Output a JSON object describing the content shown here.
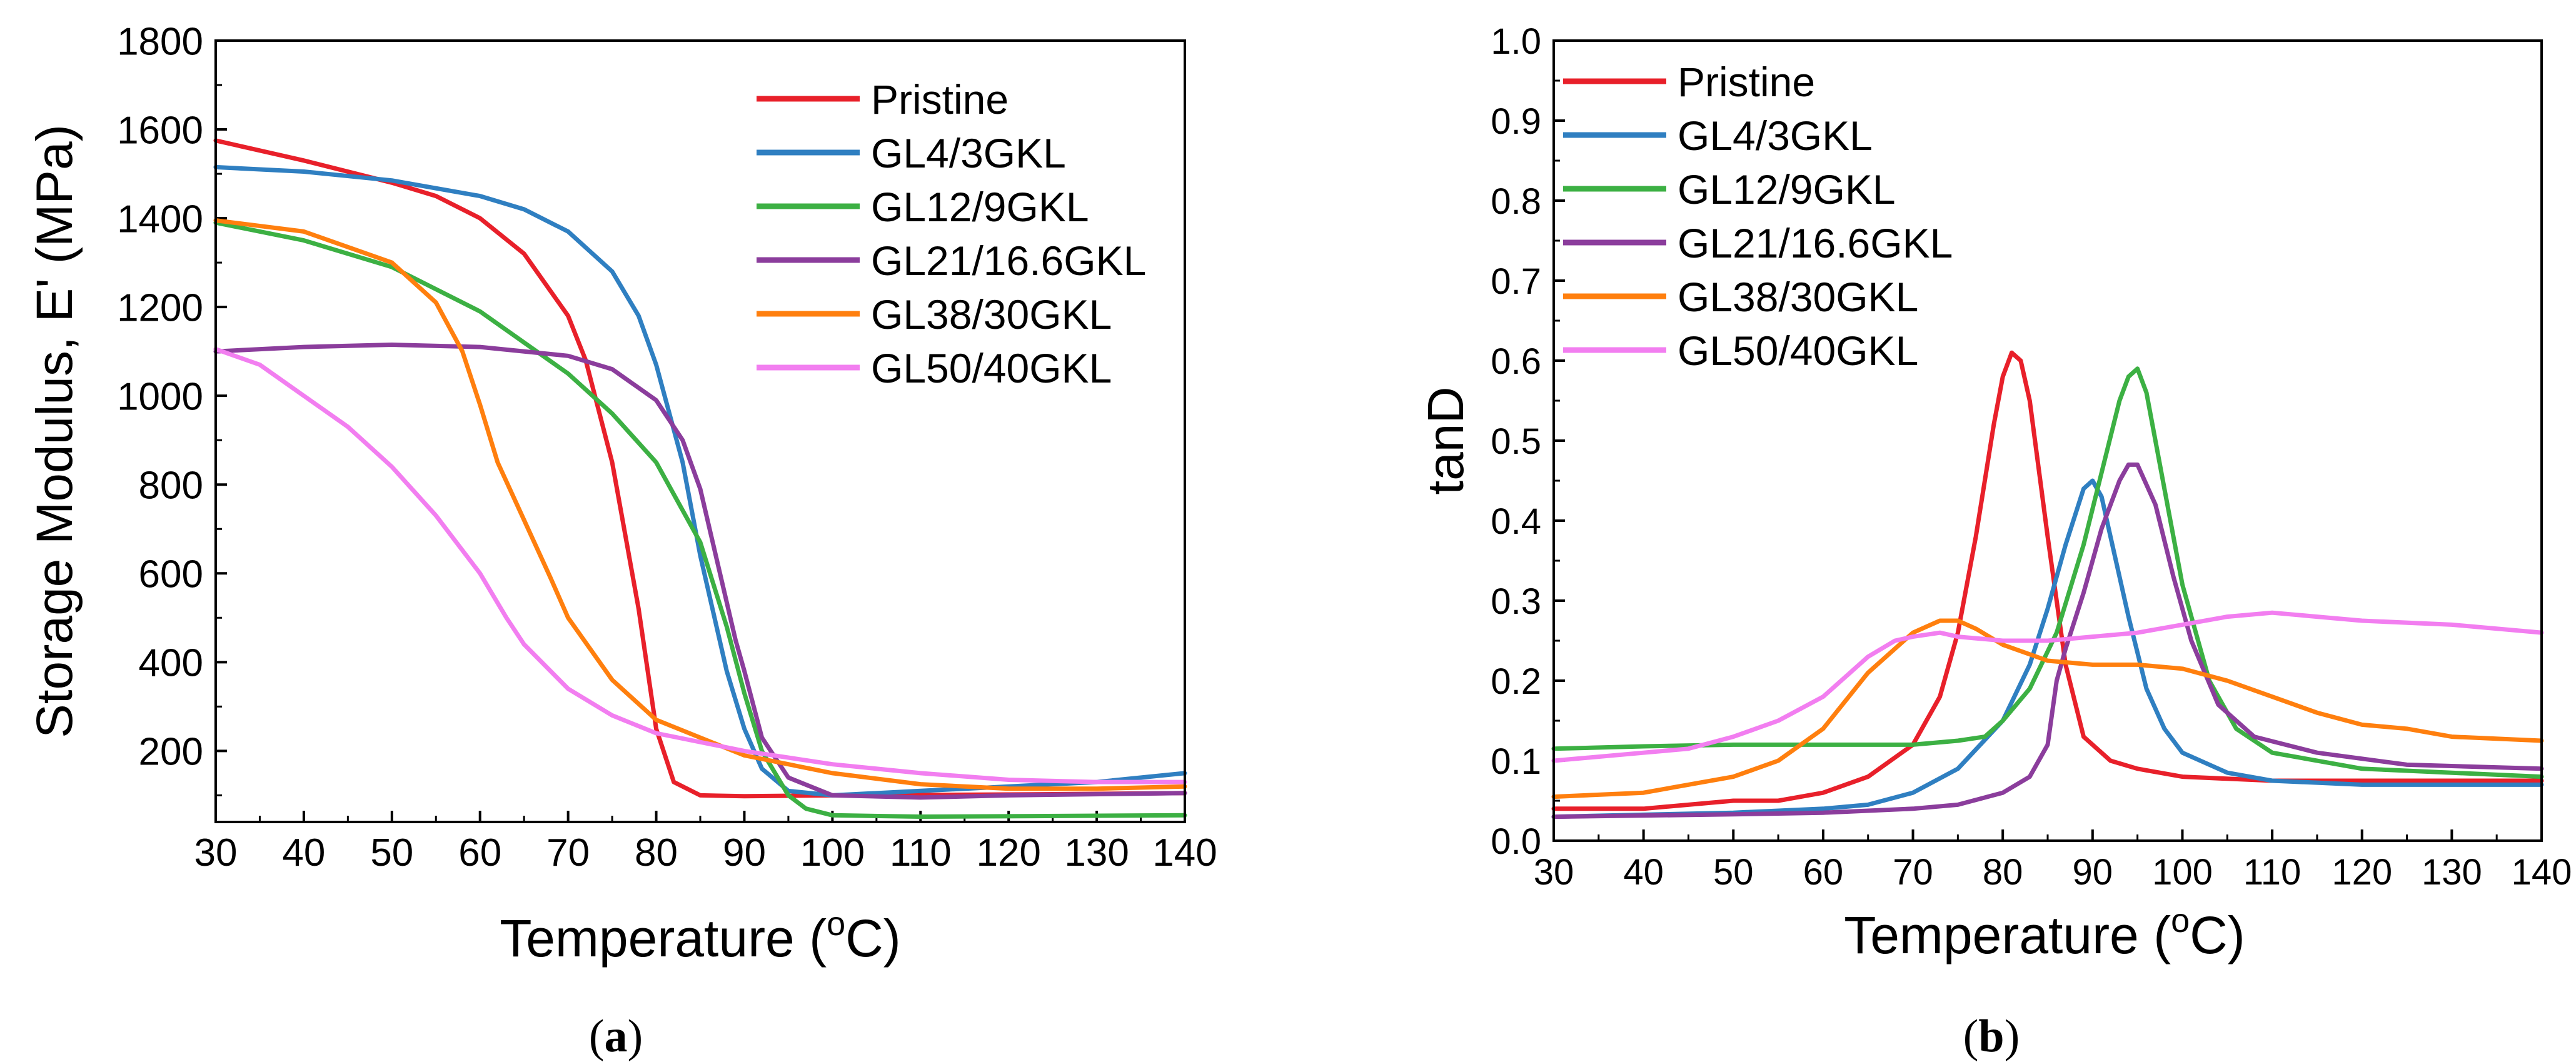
{
  "chart_data": [
    {
      "panel_label": "(a)",
      "panel_letter": "a",
      "type": "line",
      "title": "",
      "xlabel": "Temperature (",
      "xlabel_sup": "o",
      "xlabel_suffix": "C)",
      "ylabel": "Storage Modulus, E' (MPa)",
      "xlim": [
        30,
        140
      ],
      "ylim": [
        40,
        1800
      ],
      "xticks": [
        30,
        40,
        50,
        60,
        70,
        80,
        90,
        100,
        110,
        120,
        130,
        140
      ],
      "xtick_labels": [
        "30",
        "40",
        "50",
        "60",
        "70",
        "80",
        "90",
        "100",
        "110",
        "120",
        "130",
        "140"
      ],
      "yticks": [
        200,
        400,
        600,
        800,
        1000,
        1200,
        1400,
        1600,
        1800
      ],
      "ytick_labels": [
        "200",
        "400",
        "600",
        "800",
        "1000",
        "1200",
        "1400",
        "1600",
        "1800"
      ],
      "legend_position": "top-right",
      "series": [
        {
          "name": "Pristine",
          "color": "#e8202a",
          "x": [
            30,
            40,
            50,
            55,
            60,
            65,
            70,
            72,
            75,
            78,
            80,
            82,
            85,
            90,
            100,
            120,
            140
          ],
          "y": [
            1575,
            1530,
            1480,
            1450,
            1400,
            1320,
            1180,
            1080,
            850,
            520,
            250,
            130,
            100,
            98,
            100,
            102,
            105
          ]
        },
        {
          "name": "GL4/3GKL",
          "color": "#2f7fc1",
          "x": [
            30,
            40,
            50,
            60,
            65,
            70,
            75,
            78,
            80,
            83,
            85,
            88,
            90,
            92,
            95,
            100,
            110,
            120,
            130,
            140
          ],
          "y": [
            1515,
            1505,
            1485,
            1450,
            1420,
            1370,
            1280,
            1180,
            1070,
            850,
            640,
            380,
            250,
            160,
            110,
            100,
            110,
            120,
            130,
            150
          ]
        },
        {
          "name": "GL12/9GKL",
          "color": "#3cb043",
          "x": [
            30,
            40,
            50,
            60,
            65,
            70,
            75,
            80,
            85,
            88,
            90,
            92,
            95,
            97,
            100,
            110,
            140
          ],
          "y": [
            1390,
            1350,
            1290,
            1190,
            1120,
            1050,
            960,
            850,
            670,
            480,
            330,
            200,
            100,
            70,
            55,
            52,
            55
          ]
        },
        {
          "name": "GL21/16.6GKL",
          "color": "#8b3d9c",
          "x": [
            30,
            40,
            50,
            60,
            70,
            75,
            80,
            83,
            85,
            87,
            89,
            90,
            92,
            95,
            100,
            110,
            120,
            140
          ],
          "y": [
            1100,
            1110,
            1115,
            1110,
            1090,
            1060,
            990,
            900,
            790,
            620,
            450,
            380,
            230,
            140,
            100,
            95,
            100,
            105
          ]
        },
        {
          "name": "GL38/30GKL",
          "color": "#ff7f0e",
          "x": [
            30,
            40,
            50,
            55,
            58,
            60,
            62,
            65,
            68,
            70,
            75,
            80,
            90,
            100,
            110,
            120,
            130,
            140
          ],
          "y": [
            1395,
            1370,
            1300,
            1210,
            1100,
            980,
            850,
            720,
            590,
            500,
            360,
            270,
            190,
            150,
            125,
            115,
            115,
            120
          ]
        },
        {
          "name": "GL50/40GKL",
          "color": "#f27ef0",
          "x": [
            30,
            35,
            40,
            45,
            50,
            55,
            60,
            63,
            65,
            70,
            75,
            80,
            90,
            100,
            110,
            120,
            130,
            140
          ],
          "y": [
            1105,
            1070,
            1000,
            930,
            840,
            730,
            600,
            500,
            440,
            340,
            280,
            240,
            200,
            170,
            150,
            135,
            130,
            130
          ]
        }
      ]
    },
    {
      "panel_label": "(b)",
      "panel_letter": "b",
      "type": "line",
      "title": "",
      "xlabel": "Temperature (",
      "xlabel_sup": "o",
      "xlabel_suffix": "C)",
      "ylabel": "tanD",
      "xlim": [
        30,
        140
      ],
      "ylim": [
        0,
        1.0
      ],
      "xticks": [
        30,
        40,
        50,
        60,
        70,
        80,
        90,
        100,
        110,
        120,
        130,
        140
      ],
      "xtick_labels": [
        "30",
        "40",
        "50",
        "60",
        "70",
        "80",
        "90",
        "100",
        "110",
        "120",
        "130",
        "140"
      ],
      "yticks": [
        0.0,
        0.1,
        0.2,
        0.3,
        0.4,
        0.5,
        0.6,
        0.7,
        0.8,
        0.9,
        1.0
      ],
      "ytick_labels": [
        "0.0",
        "0.1",
        "0.2",
        "0.3",
        "0.4",
        "0.5",
        "0.6",
        "0.7",
        "0.8",
        "0.9",
        "1.0"
      ],
      "legend_position": "top-left",
      "series": [
        {
          "name": "Pristine",
          "color": "#e8202a",
          "x": [
            30,
            40,
            50,
            55,
            60,
            65,
            70,
            73,
            75,
            77,
            79,
            80,
            81,
            82,
            83,
            85,
            87,
            89,
            92,
            95,
            100,
            110,
            120,
            140
          ],
          "y": [
            0.04,
            0.04,
            0.05,
            0.05,
            0.06,
            0.08,
            0.12,
            0.18,
            0.26,
            0.38,
            0.52,
            0.58,
            0.61,
            0.6,
            0.55,
            0.38,
            0.22,
            0.13,
            0.1,
            0.09,
            0.08,
            0.075,
            0.075,
            0.075
          ]
        },
        {
          "name": "GL4/3GKL",
          "color": "#2f7fc1",
          "x": [
            30,
            50,
            60,
            65,
            70,
            75,
            80,
            83,
            85,
            87,
            89,
            90,
            91,
            92,
            94,
            96,
            98,
            100,
            105,
            110,
            120,
            140
          ],
          "y": [
            0.03,
            0.035,
            0.04,
            0.045,
            0.06,
            0.09,
            0.15,
            0.22,
            0.29,
            0.37,
            0.44,
            0.45,
            0.43,
            0.38,
            0.28,
            0.19,
            0.14,
            0.11,
            0.085,
            0.075,
            0.07,
            0.07
          ]
        },
        {
          "name": "GL12/9GKL",
          "color": "#3cb043",
          "x": [
            30,
            40,
            50,
            60,
            70,
            75,
            78,
            80,
            83,
            86,
            89,
            91,
            93,
            94,
            95,
            96,
            98,
            100,
            103,
            106,
            110,
            120,
            140
          ],
          "y": [
            0.115,
            0.118,
            0.12,
            0.12,
            0.12,
            0.125,
            0.13,
            0.15,
            0.19,
            0.26,
            0.37,
            0.46,
            0.55,
            0.58,
            0.59,
            0.56,
            0.44,
            0.32,
            0.2,
            0.14,
            0.11,
            0.09,
            0.08
          ]
        },
        {
          "name": "GL21/16.6GKL",
          "color": "#8b3d9c",
          "x": [
            30,
            50,
            60,
            70,
            75,
            80,
            83,
            85,
            86,
            87,
            89,
            91,
            93,
            94,
            95,
            97,
            99,
            101,
            104,
            108,
            115,
            125,
            140
          ],
          "y": [
            0.03,
            0.033,
            0.035,
            0.04,
            0.045,
            0.06,
            0.08,
            0.12,
            0.2,
            0.24,
            0.31,
            0.39,
            0.45,
            0.47,
            0.47,
            0.42,
            0.33,
            0.25,
            0.17,
            0.13,
            0.11,
            0.095,
            0.09
          ]
        },
        {
          "name": "GL38/30GKL",
          "color": "#ff7f0e",
          "x": [
            30,
            40,
            50,
            55,
            60,
            65,
            70,
            73,
            75,
            77,
            80,
            85,
            90,
            95,
            100,
            105,
            110,
            115,
            120,
            125,
            130,
            140
          ],
          "y": [
            0.055,
            0.06,
            0.08,
            0.1,
            0.14,
            0.21,
            0.26,
            0.275,
            0.275,
            0.265,
            0.245,
            0.225,
            0.22,
            0.22,
            0.215,
            0.2,
            0.18,
            0.16,
            0.145,
            0.14,
            0.13,
            0.125
          ]
        },
        {
          "name": "GL50/40GKL",
          "color": "#f27ef0",
          "x": [
            30,
            40,
            45,
            50,
            55,
            60,
            63,
            65,
            68,
            70,
            73,
            75,
            80,
            85,
            90,
            95,
            100,
            105,
            110,
            115,
            120,
            130,
            140
          ],
          "y": [
            0.1,
            0.11,
            0.115,
            0.13,
            0.15,
            0.18,
            0.21,
            0.23,
            0.25,
            0.255,
            0.26,
            0.255,
            0.25,
            0.25,
            0.255,
            0.26,
            0.27,
            0.28,
            0.285,
            0.28,
            0.275,
            0.27,
            0.26
          ]
        }
      ]
    }
  ]
}
